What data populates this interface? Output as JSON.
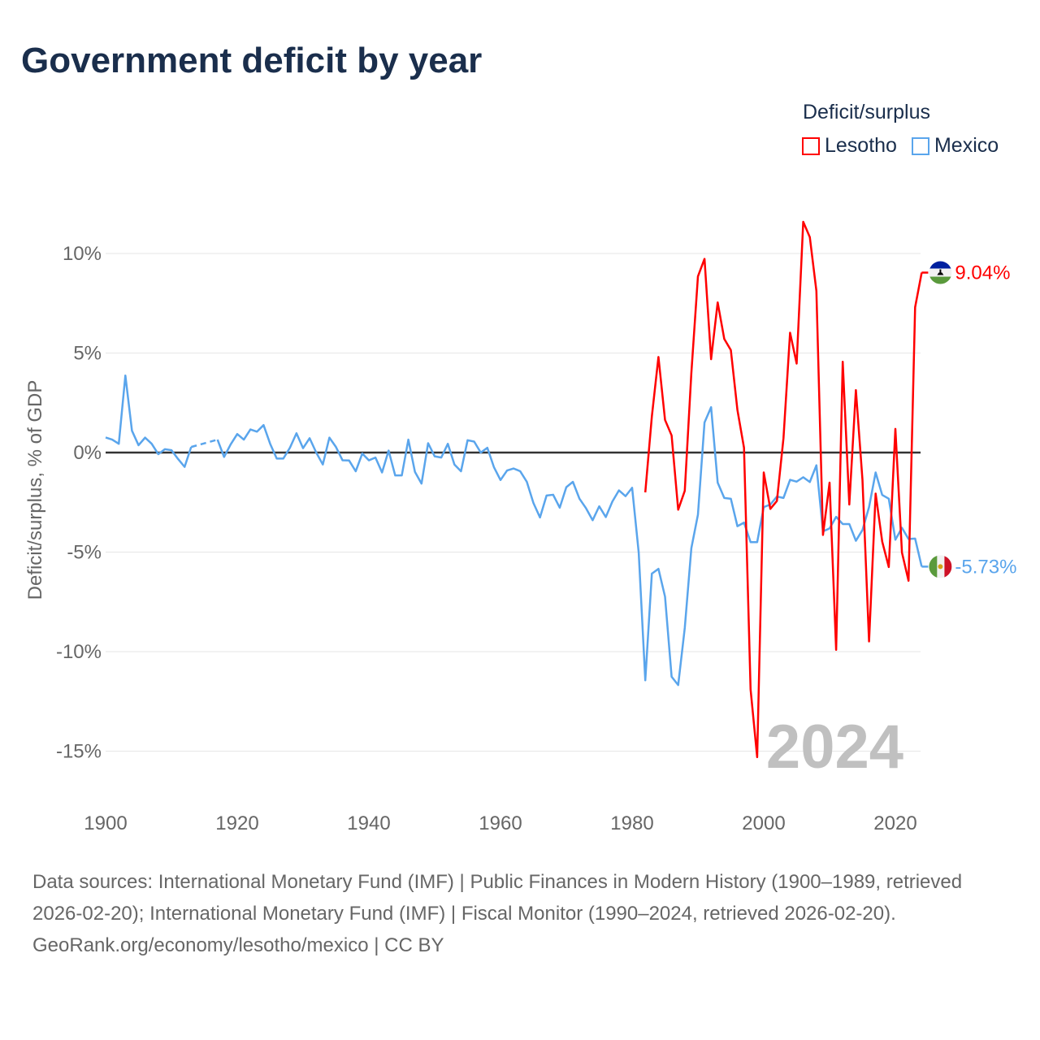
{
  "title": "Government deficit by year",
  "legend": {
    "title": "Deficit/surplus",
    "items": [
      {
        "name": "Lesotho",
        "color": "#ff0000"
      },
      {
        "name": "Mexico",
        "color": "#5aa5ec"
      }
    ]
  },
  "chart_data": {
    "type": "line",
    "title": "Government deficit by year",
    "ylabel": "Deficit/surplus, % of GDP",
    "xlabel": "",
    "xlim": [
      1900,
      2024
    ],
    "ylim": [
      -17.5,
      12
    ],
    "yticks": [
      10,
      5,
      0,
      -5,
      -10,
      -15
    ],
    "ytick_labels": [
      "10%",
      "5%",
      "0%",
      "-5%",
      "-10%",
      "-15%"
    ],
    "xticks": [
      1900,
      1920,
      1940,
      1960,
      1980,
      2000,
      2020
    ],
    "xtick_labels": [
      "1900",
      "1920",
      "1940",
      "1960",
      "1980",
      "2000",
      "2020"
    ],
    "grid": true,
    "legend_position": "top-right",
    "year_watermark": "2024",
    "series": [
      {
        "name": "Lesotho",
        "color": "#ff0000",
        "start_year": 1982,
        "end_label": "9.04%",
        "values": [
          -2.0,
          1.82,
          4.8,
          1.64,
          0.86,
          -2.87,
          -1.92,
          4.0,
          8.85,
          9.73,
          4.69,
          7.54,
          5.71,
          5.15,
          2.14,
          0.24,
          -11.9,
          -15.3,
          -1.0,
          -2.83,
          -2.43,
          0.73,
          6.02,
          4.47,
          11.59,
          10.82,
          8.12,
          -4.14,
          -1.51,
          -9.91,
          4.56,
          -2.61,
          3.14,
          -1.37,
          -9.49,
          -2.06,
          -4.47,
          -5.75,
          1.19,
          -5.02,
          -6.44,
          7.3,
          9.04
        ]
      },
      {
        "name": "Mexico",
        "color": "#5aa5ec",
        "start_year": 1900,
        "end_label": "-5.73%",
        "values": [
          0.76,
          0.65,
          0.44,
          3.87,
          1.1,
          0.37,
          0.75,
          0.44,
          -0.08,
          0.17,
          0.12,
          -0.32,
          -0.72,
          0.28,
          null,
          null,
          null,
          0.65,
          -0.22,
          0.41,
          0.93,
          0.65,
          1.16,
          1.05,
          1.38,
          0.44,
          -0.3,
          -0.3,
          0.24,
          0.97,
          0.22,
          0.72,
          0.0,
          -0.6,
          0.75,
          0.28,
          -0.39,
          -0.4,
          -0.94,
          -0.05,
          -0.39,
          -0.25,
          -1.0,
          0.1,
          -1.15,
          -1.15,
          0.65,
          -0.97,
          -1.56,
          0.47,
          -0.19,
          -0.25,
          0.44,
          -0.6,
          -0.94,
          0.62,
          0.55,
          0.0,
          0.24,
          -0.73,
          -1.38,
          -0.9,
          -0.8,
          -0.94,
          -1.47,
          -2.53,
          -3.26,
          -2.16,
          -2.12,
          -2.77,
          -1.74,
          -1.47,
          -2.32,
          -2.8,
          -3.4,
          -2.7,
          -3.24,
          -2.46,
          -1.9,
          -2.19,
          -1.77,
          -5.02,
          -11.44,
          -6.08,
          -5.84,
          -7.24,
          -11.26,
          -11.68,
          -8.81,
          -4.8,
          -3.12,
          1.51,
          2.28,
          -1.51,
          -2.28,
          -2.32,
          -3.7,
          -3.52,
          -4.5,
          -4.5,
          -2.74,
          -2.61,
          -2.21,
          -2.28,
          -1.37,
          -1.46,
          -1.24,
          -1.48,
          -0.64,
          -3.96,
          -3.81,
          -3.23,
          -3.59,
          -3.59,
          -4.43,
          -3.89,
          -2.74,
          -1.0,
          -2.13,
          -2.32,
          -4.38,
          -3.78,
          -4.34,
          -4.32,
          -5.73
        ]
      }
    ]
  },
  "footer": {
    "sources": "Data sources: International Monetary Fund (IMF) | Public Finances in Modern History (1900–1989, retrieved 2026-02-20); International Monetary Fund (IMF) | Fiscal Monitor (1990–2024, retrieved 2026-02-20).",
    "credit": "GeoRank.org/economy/lesotho/mexico | CC BY"
  }
}
